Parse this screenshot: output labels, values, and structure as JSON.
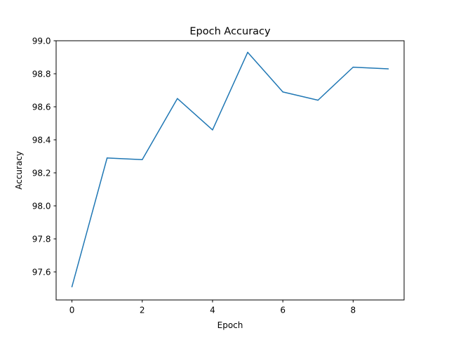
{
  "chart_data": {
    "type": "line",
    "title": "Epoch Accuracy",
    "xlabel": "Epoch",
    "ylabel": "Accuracy",
    "x": [
      0,
      1,
      2,
      3,
      4,
      5,
      6,
      7,
      8,
      9
    ],
    "series": [
      {
        "values": [
          97.51,
          98.29,
          98.28,
          98.65,
          98.46,
          98.93,
          98.69,
          98.64,
          98.84,
          98.83
        ],
        "color": "#1f77b4"
      }
    ],
    "xlim": [
      -0.45,
      9.45
    ],
    "ylim": [
      97.43,
      99.0
    ],
    "xticks": [
      0,
      2,
      4,
      6,
      8
    ],
    "xtick_labels": [
      "0",
      "2",
      "4",
      "6",
      "8"
    ],
    "yticks": [
      97.6,
      97.8,
      98.0,
      98.2,
      98.4,
      98.6,
      98.8,
      99.0
    ],
    "ytick_labels": [
      "97.6",
      "97.8",
      "98.0",
      "98.2",
      "98.4",
      "98.6",
      "98.8",
      "99.0"
    ],
    "grid": false,
    "legend": "none"
  }
}
